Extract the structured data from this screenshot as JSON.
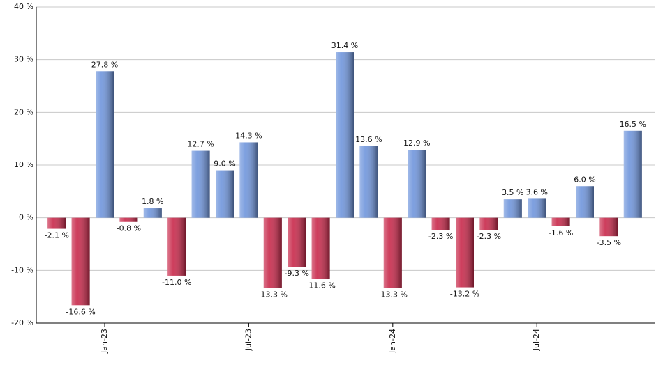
{
  "chart_data": {
    "type": "bar",
    "categories": [
      null,
      null,
      "Jan-23",
      null,
      null,
      null,
      null,
      null,
      "Jul-23",
      null,
      null,
      null,
      null,
      null,
      "Jan-24",
      null,
      null,
      null,
      null,
      null,
      "Jul-24",
      null,
      null,
      null,
      null
    ],
    "values": [
      -2.1,
      -16.6,
      27.8,
      -0.8,
      1.8,
      -11.0,
      12.7,
      9.0,
      14.3,
      -13.3,
      -9.3,
      -11.6,
      31.4,
      13.6,
      -13.3,
      12.9,
      -2.3,
      -13.2,
      -2.3,
      3.5,
      3.6,
      -1.6,
      6.0,
      -3.5,
      16.5
    ],
    "value_labels": [
      "-2.1 %",
      "-16.6 %",
      "27.8 %",
      "-0.8 %",
      "1.8 %",
      "-11.0 %",
      "12.7 %",
      "9.0 %",
      "14.3 %",
      "-13.3 %",
      "-9.3 %",
      "-11.6 %",
      "31.4 %",
      "13.6 %",
      "-13.3 %",
      "12.9 %",
      "-2.3 %",
      "-13.2 %",
      "-2.3 %",
      "3.5 %",
      "3.6 %",
      "-1.6 %",
      "6.0 %",
      "-3.5 %",
      "16.5 %"
    ],
    "positive_color": "#6f95dc",
    "negative_color": "#c8284a",
    "ylim": [
      -20,
      40
    ],
    "yticks": [
      {
        "value": -20,
        "label": "-20 %"
      },
      {
        "value": -10,
        "label": "-10 %"
      },
      {
        "value": 0,
        "label": "0 %"
      },
      {
        "value": 10,
        "label": "10 %"
      },
      {
        "value": 20,
        "label": "20 %"
      },
      {
        "value": 30,
        "label": "30 %"
      },
      {
        "value": 40,
        "label": "40 %"
      }
    ],
    "grid": true
  }
}
